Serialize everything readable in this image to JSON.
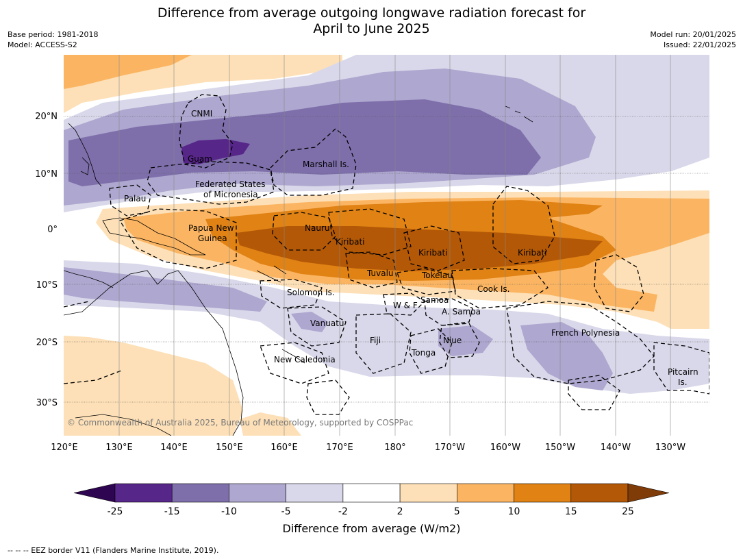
{
  "title_line1": "Difference from average outgoing longwave radiation forecast for",
  "title_line2": "April to June 2025",
  "meta_left": [
    "Base period: 1981-2018",
    "Model: ACCESS-S2"
  ],
  "meta_right": [
    "Model run: 20/01/2025",
    "Issued: 22/01/2025"
  ],
  "lon_ticks": [
    "120°E",
    "130°E",
    "140°E",
    "150°E",
    "160°E",
    "170°E",
    "180°",
    "170°W",
    "160°W",
    "150°W",
    "140°W",
    "130°W"
  ],
  "lat_ticks": [
    "20°N",
    "10°N",
    "0°",
    "10°S",
    "20°S",
    "30°S"
  ],
  "regions": [
    {
      "id": "cnmi",
      "label": "CNMI"
    },
    {
      "id": "guam",
      "label": "Guam"
    },
    {
      "id": "marshall",
      "label": "Marshall Is."
    },
    {
      "id": "fsm1",
      "label": "Federated States"
    },
    {
      "id": "fsm2",
      "label": "of Micronesia"
    },
    {
      "id": "palau",
      "label": "Palau"
    },
    {
      "id": "png1",
      "label": "Papua New"
    },
    {
      "id": "png2",
      "label": "Guinea"
    },
    {
      "id": "nauru",
      "label": "Nauru"
    },
    {
      "id": "kiribati1",
      "label": "Kiribati"
    },
    {
      "id": "kiribati2",
      "label": "Kiribati"
    },
    {
      "id": "kiribati3",
      "label": "Kiribati"
    },
    {
      "id": "tuvalu",
      "label": "Tuvalu"
    },
    {
      "id": "tokelau",
      "label": "Tokelau"
    },
    {
      "id": "cook",
      "label": "Cook Is."
    },
    {
      "id": "solomon",
      "label": "Solomon Is."
    },
    {
      "id": "samoa",
      "label": "Samoa"
    },
    {
      "id": "wf",
      "label": "W & F"
    },
    {
      "id": "asamoa",
      "label": "A. Samoa"
    },
    {
      "id": "vanuatu",
      "label": "Vanuatu"
    },
    {
      "id": "fiji",
      "label": "Fiji"
    },
    {
      "id": "niue",
      "label": "Niue"
    },
    {
      "id": "tonga",
      "label": "Tonga"
    },
    {
      "id": "frenchpoly",
      "label": "French Polynesia"
    },
    {
      "id": "newcal",
      "label": "New Caledonia"
    },
    {
      "id": "pitcairn1",
      "label": "Pitcairn"
    },
    {
      "id": "pitcairn2",
      "label": "Is."
    }
  ],
  "copyright": "© Commonwealth of Australia 2025, Bureau of Meteorology, supported by COSPPac",
  "colorbar": {
    "label": "Difference from average (W/m2)",
    "ticks": [
      "-25",
      "-15",
      "-10",
      "-5",
      "-2",
      "2",
      "5",
      "10",
      "15",
      "25"
    ],
    "colors": [
      "#2e0550",
      "#572689",
      "#7e6fab",
      "#aea7cf",
      "#d9d8ea",
      "#ffffff",
      "#fde0b7",
      "#fbb562",
      "#e08214",
      "#b35806",
      "#7f3b08"
    ]
  },
  "footnote": "--  --  -- EEZ border V11 (Flanders Marine Institute, 2019)."
}
